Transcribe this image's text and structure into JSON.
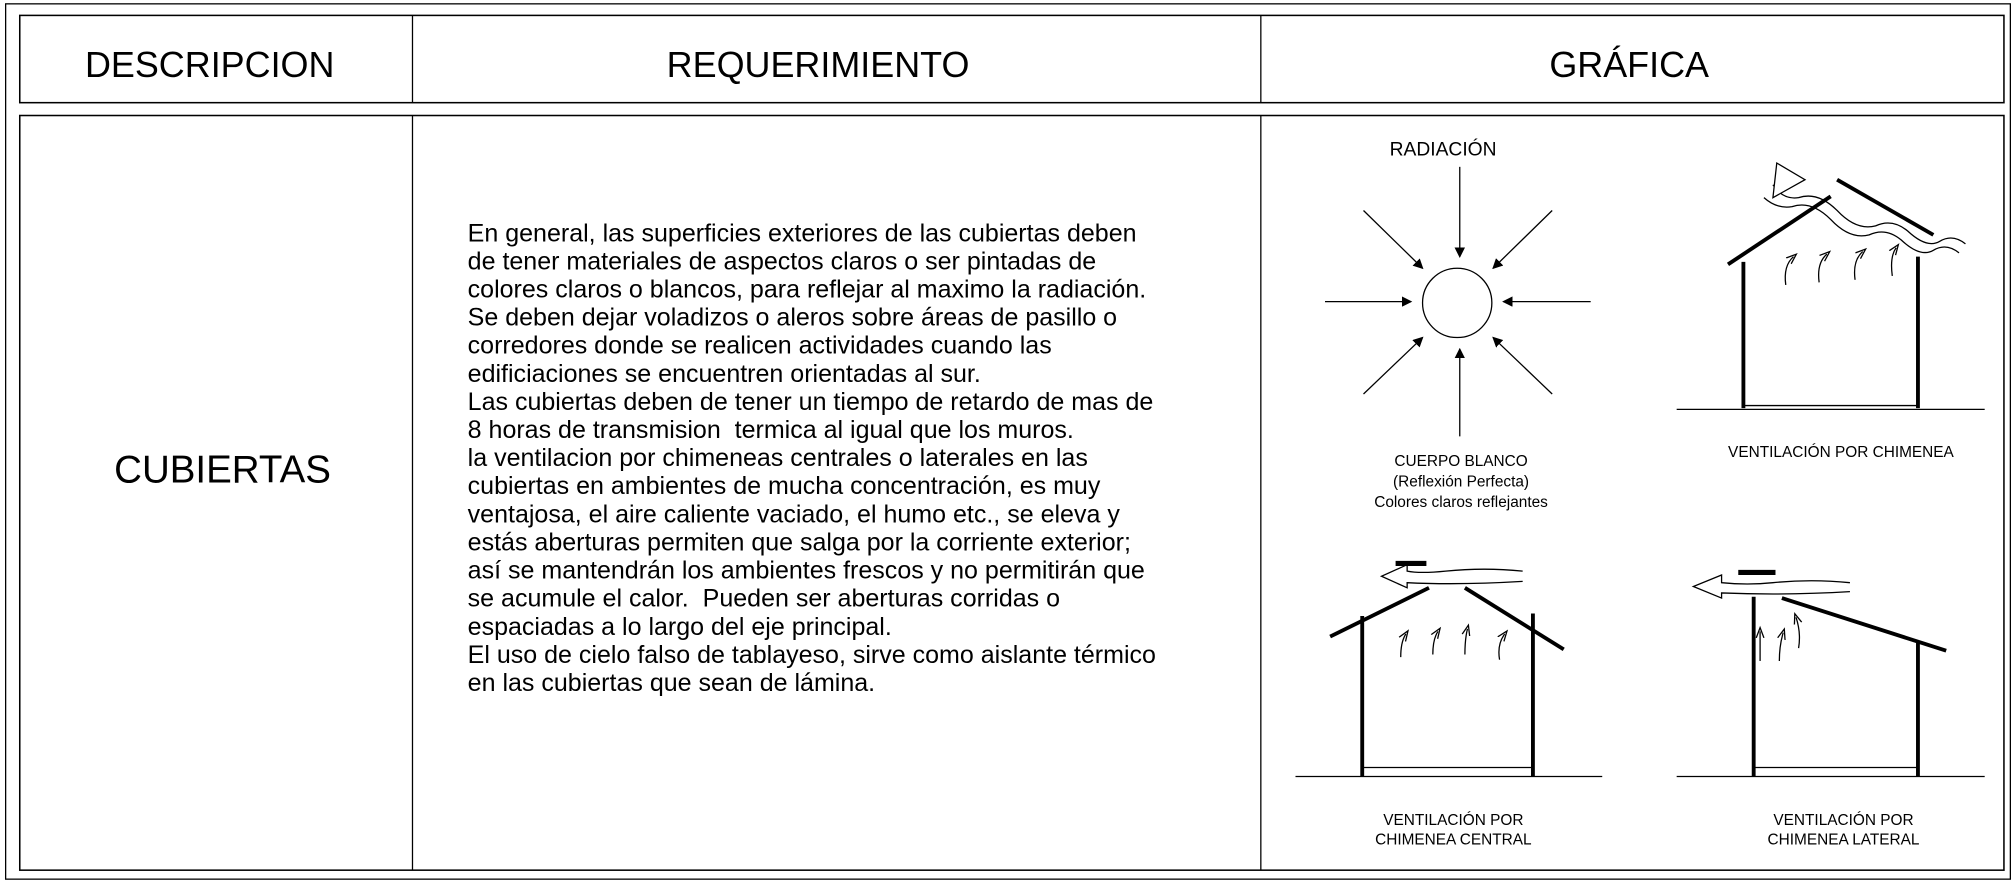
{
  "header": {
    "columns": [
      "DESCRIPCION",
      "REQUERIMIENTO",
      "GRÁFICA"
    ]
  },
  "row": {
    "description": "CUBIERTAS",
    "requirement": {
      "lines": [
        "En general, las superficies exteriores de las cubiertas deben",
        "de tener materiales de aspectos claros o ser pintadas de",
        "colores claros o blancos, para reflejar al maximo la radiación.",
        "Se deben dejar voladizos o aleros sobre áreas de pasillo o",
        "corredores donde se realicen actividades cuando las",
        "edificiaciones se encuentren orientadas al sur.",
        "Las cubiertas deben de tener un tiempo de retardo de mas de",
        "8 horas de transmision  termica al igual que los muros.",
        "la ventilacion por chimeneas centrales o laterales en las",
        "cubiertas en ambientes de mucha concentración, es muy",
        "ventajosa, el aire caliente vaciado, el humo etc., se eleva y",
        "estás aberturas permiten que salga por la corriente exterior;",
        "así se mantendrán los ambientes frescos y no permitirán que",
        "se acumule el calor.  Pueden ser aberturas corridas o",
        "espaciadas a lo largo del eje principal.",
        "El uso de cielo falso de tablayeso, sirve como aislante térmico",
        "en las cubiertas que sean de lámina."
      ]
    },
    "graphic": {
      "radiation": {
        "title": "RADIACIÓN",
        "caption": [
          "CUERPO BLANCO",
          "(Reflexión Perfecta)",
          "Colores claros reflejantes"
        ]
      },
      "chimney": {
        "caption": "VENTILACIÓN POR CHIMENEA"
      },
      "central": {
        "caption": [
          "VENTILACIÓN POR",
          "CHIMENEA CENTRAL"
        ]
      },
      "lateral": {
        "caption": [
          "VENTILACIÓN POR",
          "CHIMENEA LATERAL"
        ]
      }
    }
  }
}
